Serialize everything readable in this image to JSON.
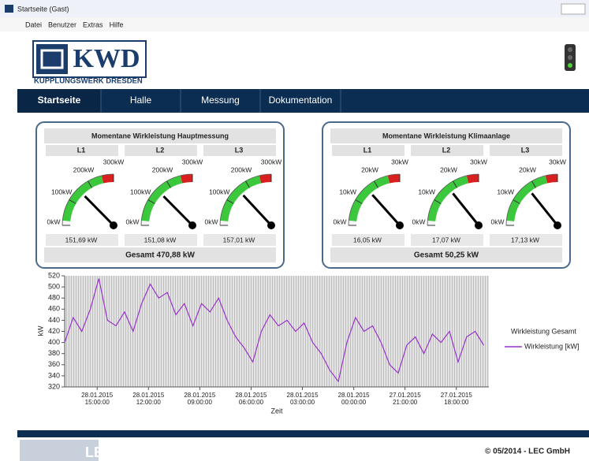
{
  "window": {
    "title": "Startseite (Gast)"
  },
  "menu": [
    "Datei",
    "Benutzer",
    "Extras",
    "Hilfe"
  ],
  "logo": {
    "name": "KWD",
    "subtitle": "KUPPLUNGSWERK DRESDEN"
  },
  "nav": [
    "Startseite",
    "Halle",
    "Messung",
    "Dokumentation"
  ],
  "panels": [
    {
      "title": "Momentane Wirkleistung Hauptmessung",
      "phases": [
        "L1",
        "L2",
        "L3"
      ],
      "scale": [
        {
          "value": 0,
          "label": "0kW"
        },
        {
          "value": 100,
          "label": "100kW"
        },
        {
          "value": 200,
          "label": "200kW"
        },
        {
          "value": 300,
          "label": "300kW"
        }
      ],
      "values": [
        151.69,
        151.08,
        157.01
      ],
      "value_labels": [
        "151,69 kW",
        "151,08 kW",
        "157,01 kW"
      ],
      "total": "Gesamt 470,88 kW"
    },
    {
      "title": "Momentane Wirkleistung Klimaanlage",
      "phases": [
        "L1",
        "L2",
        "L3"
      ],
      "scale": [
        {
          "value": 0,
          "label": "0kW"
        },
        {
          "value": 10,
          "label": "10kW"
        },
        {
          "value": 20,
          "label": "20kW"
        },
        {
          "value": 30,
          "label": "30kW"
        }
      ],
      "values": [
        16.05,
        17.07,
        17.13
      ],
      "value_labels": [
        "16,05 kW",
        "17,07 kW",
        "17,13 kW"
      ],
      "total": "Gesamt 50,25 kW"
    }
  ],
  "chart_data": {
    "type": "line",
    "ylabel": "kW",
    "xlabel": "Zeit",
    "legend_title": "Wirkleistung Gesamt",
    "x": [
      0,
      0.5,
      1,
      1.5,
      2,
      2.5,
      3,
      3.5,
      4,
      4.5,
      5,
      5.5,
      6,
      6.5,
      7,
      7.5,
      8,
      8.5,
      9,
      9.5,
      10,
      10.5,
      11,
      11.5,
      12,
      12.5,
      13,
      13.5,
      14,
      14.5,
      15,
      15.5,
      16,
      16.5,
      17,
      17.5,
      18,
      18.5,
      19,
      19.5,
      20,
      20.5,
      21,
      21.5,
      22,
      22.5,
      23,
      23.5,
      24,
      24.5
    ],
    "series": [
      {
        "name": "Wirkleistung [kW]",
        "color": "#9933cc",
        "values": [
          400,
          445,
          420,
          460,
          515,
          440,
          430,
          455,
          420,
          470,
          505,
          480,
          490,
          450,
          470,
          430,
          470,
          455,
          480,
          440,
          410,
          390,
          365,
          420,
          450,
          430,
          440,
          420,
          435,
          400,
          380,
          350,
          330,
          400,
          445,
          420,
          430,
          400,
          360,
          345,
          395,
          410,
          380,
          415,
          400,
          420,
          365,
          410,
          420,
          395
        ]
      }
    ],
    "xlim": [
      0,
      24.8
    ],
    "ylim": [
      320,
      520
    ],
    "yticks": [
      320,
      340,
      360,
      380,
      400,
      420,
      440,
      460,
      480,
      500,
      520
    ],
    "xticks": [
      {
        "value": 1.9,
        "label": "28.01.2015\n15:00:00"
      },
      {
        "value": 4.9,
        "label": "28.01.2015\n12:00:00"
      },
      {
        "value": 7.9,
        "label": "28.01.2015\n09:00:00"
      },
      {
        "value": 10.9,
        "label": "28.01.2015\n06:00:00"
      },
      {
        "value": 13.9,
        "label": "28.01.2015\n03:00:00"
      },
      {
        "value": 16.9,
        "label": "28.01.2015\n00:00:00"
      },
      {
        "value": 19.9,
        "label": "27.01.2015\n21:00:00"
      },
      {
        "value": 22.9,
        "label": "27.01.2015\n18:00:00"
      }
    ],
    "grid": true
  },
  "footer": {
    "logo": "LEC",
    "copyright": "© 05/2014 - LEC GmbH"
  }
}
